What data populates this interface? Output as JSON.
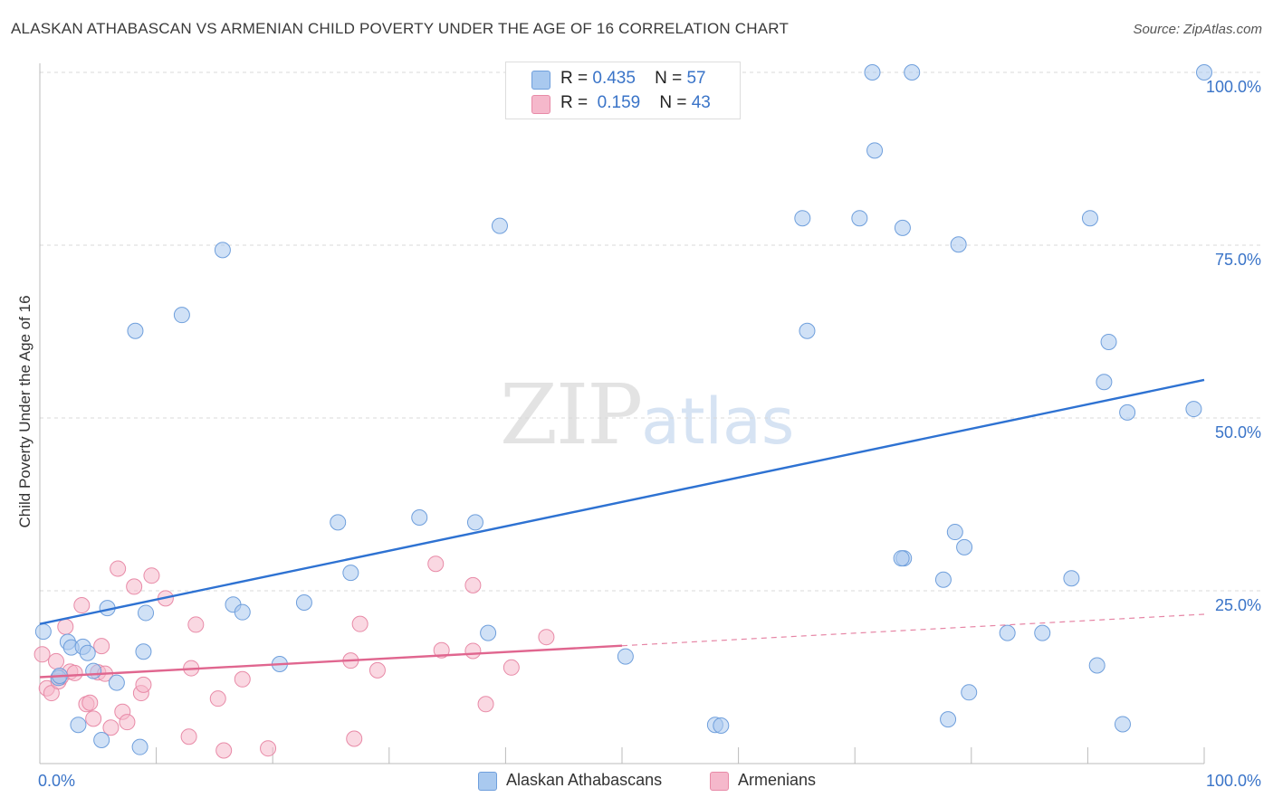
{
  "header": {
    "title": "ALASKAN ATHABASCAN VS ARMENIAN CHILD POVERTY UNDER THE AGE OF 16 CORRELATION CHART",
    "source": "Source: ZipAtlas.com"
  },
  "watermark": {
    "zip": "ZIP",
    "atlas": "atlas"
  },
  "legend": {
    "rows": [
      {
        "r_label": "R =",
        "r_value": "0.435",
        "n_label": "N =",
        "n_value": "57",
        "color": "#a9c9ef"
      },
      {
        "r_label": "R =",
        "r_value": "0.159",
        "n_label": "N =",
        "n_value": "43",
        "color": "#f5b8cb"
      }
    ]
  },
  "bottom_legend": [
    {
      "label": "Alaskan Athabascans",
      "color": "#a9c9ef"
    },
    {
      "label": "Armenians",
      "color": "#f5b8cb"
    }
  ],
  "chart_data": {
    "type": "scatter",
    "title": "ALASKAN ATHABASCAN VS ARMENIAN CHILD POVERTY UNDER THE AGE OF 16 CORRELATION CHART",
    "xlabel": "",
    "ylabel": "Child Poverty Under the Age of 16",
    "xlim": [
      0,
      100
    ],
    "ylim": [
      0,
      102
    ],
    "x_tick_labels": [
      {
        "value": 0,
        "label": "0.0%"
      },
      {
        "value": 100,
        "label": "100.0%"
      }
    ],
    "y_tick_labels": [
      {
        "value": 25,
        "label": "25.0%"
      },
      {
        "value": 50,
        "label": "50.0%"
      },
      {
        "value": 75,
        "label": "75.0%"
      },
      {
        "value": 100,
        "label": "100.0%"
      }
    ],
    "grid": true,
    "legend_position": "top-center",
    "series": [
      {
        "name": "Alaskan Athabascans",
        "color": "#a9c9ef",
        "stroke": "#6f9fdc",
        "trend_color": "#2e72d2",
        "trend": {
          "x0": 0,
          "y0": 20.2,
          "x1": 100,
          "y1": 55.5,
          "solid_until": 100
        },
        "points": [
          [
            0.3,
            19.1
          ],
          [
            1.6,
            12.4
          ],
          [
            1.7,
            12.7
          ],
          [
            2.4,
            17.6
          ],
          [
            2.7,
            16.8
          ],
          [
            3.3,
            5.6
          ],
          [
            3.7,
            16.9
          ],
          [
            4.1,
            16.0
          ],
          [
            4.6,
            13.4
          ],
          [
            5.3,
            3.4
          ],
          [
            5.8,
            22.5
          ],
          [
            6.6,
            11.7
          ],
          [
            8.2,
            62.6
          ],
          [
            8.6,
            2.4
          ],
          [
            8.9,
            16.2
          ],
          [
            9.1,
            21.8
          ],
          [
            12.2,
            64.9
          ],
          [
            15.7,
            74.3
          ],
          [
            16.6,
            23.0
          ],
          [
            17.4,
            21.9
          ],
          [
            20.6,
            14.4
          ],
          [
            22.7,
            23.3
          ],
          [
            25.6,
            34.9
          ],
          [
            26.7,
            27.6
          ],
          [
            32.6,
            35.6
          ],
          [
            37.4,
            34.9
          ],
          [
            38.5,
            18.9
          ],
          [
            39.5,
            77.8
          ],
          [
            50.3,
            15.5
          ],
          [
            58.0,
            5.6
          ],
          [
            65.5,
            78.9
          ],
          [
            65.9,
            62.6
          ],
          [
            70.4,
            78.9
          ],
          [
            71.5,
            100.0
          ],
          [
            71.7,
            88.7
          ],
          [
            74.2,
            29.7
          ],
          [
            74.9,
            100.0
          ],
          [
            74.0,
            29.7
          ],
          [
            74.1,
            77.5
          ],
          [
            77.6,
            26.6
          ],
          [
            78.0,
            6.4
          ],
          [
            78.6,
            33.5
          ],
          [
            78.9,
            75.1
          ],
          [
            79.4,
            31.3
          ],
          [
            79.8,
            10.3
          ],
          [
            83.1,
            18.9
          ],
          [
            86.1,
            18.9
          ],
          [
            88.6,
            26.8
          ],
          [
            90.2,
            78.9
          ],
          [
            90.8,
            14.2
          ],
          [
            91.4,
            55.2
          ],
          [
            91.8,
            61.0
          ],
          [
            93.0,
            5.7
          ],
          [
            93.4,
            50.8
          ],
          [
            99.1,
            51.3
          ],
          [
            100.0,
            100.0
          ],
          [
            58.5,
            5.5
          ]
        ]
      },
      {
        "name": "Armenians",
        "color": "#f5b8cb",
        "stroke": "#e88aa7",
        "trend_color": "#e0668f",
        "trend": {
          "x0": 0,
          "y0": 12.5,
          "x1": 100,
          "y1": 21.6,
          "solid_until": 50
        },
        "points": [
          [
            0.2,
            15.8
          ],
          [
            0.6,
            10.9
          ],
          [
            1.0,
            10.2
          ],
          [
            1.4,
            14.8
          ],
          [
            1.6,
            11.9
          ],
          [
            1.8,
            12.5
          ],
          [
            2.2,
            19.8
          ],
          [
            2.6,
            13.3
          ],
          [
            3.0,
            13.1
          ],
          [
            3.6,
            22.9
          ],
          [
            4.0,
            8.6
          ],
          [
            4.3,
            8.8
          ],
          [
            4.6,
            6.5
          ],
          [
            5.0,
            13.2
          ],
          [
            5.3,
            17.0
          ],
          [
            5.6,
            13.0
          ],
          [
            6.1,
            5.2
          ],
          [
            7.1,
            7.5
          ],
          [
            6.7,
            28.2
          ],
          [
            7.5,
            6.0
          ],
          [
            8.1,
            25.6
          ],
          [
            8.7,
            10.2
          ],
          [
            8.9,
            11.4
          ],
          [
            9.6,
            27.2
          ],
          [
            10.8,
            23.9
          ],
          [
            12.8,
            3.9
          ],
          [
            13.0,
            13.8
          ],
          [
            13.4,
            20.1
          ],
          [
            15.3,
            9.4
          ],
          [
            15.8,
            1.9
          ],
          [
            17.4,
            12.2
          ],
          [
            19.6,
            2.2
          ],
          [
            26.7,
            14.9
          ],
          [
            27.0,
            3.6
          ],
          [
            27.5,
            20.2
          ],
          [
            29.0,
            13.5
          ],
          [
            34.0,
            28.9
          ],
          [
            34.5,
            16.4
          ],
          [
            37.2,
            16.3
          ],
          [
            37.2,
            25.8
          ],
          [
            38.3,
            8.6
          ],
          [
            40.5,
            13.9
          ],
          [
            43.5,
            18.3
          ]
        ]
      }
    ]
  }
}
